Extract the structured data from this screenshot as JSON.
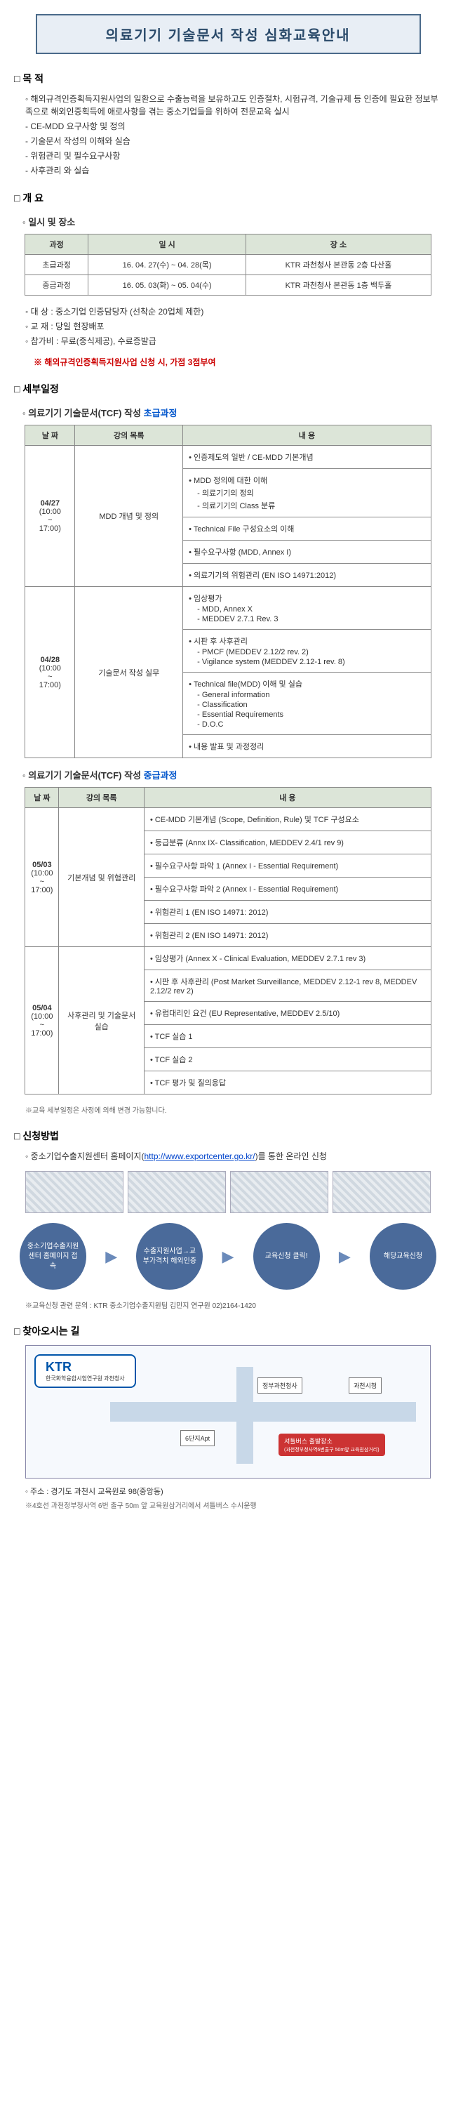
{
  "title": "의료기기 기술문서 작성 심화교육안내",
  "sections": {
    "purpose": {
      "head": "목 적",
      "items": [
        {
          "t": "diamond",
          "text": "해외규격인증획득지원사업의 일환으로 수출능력을 보유하고도 인증절차, 시험규격, 기술규제 등 인증에 필요한 정보부족으로 해외인증획득에 애로사항을 겪는 중소기업들을 위하여 전문교육 실시"
        },
        {
          "t": "dash",
          "text": "CE-MDD 요구사항 및 정의"
        },
        {
          "t": "dash",
          "text": "기술문서 작성의 이해와 실습"
        },
        {
          "t": "dash",
          "text": "위험관리 및 필수요구사항"
        },
        {
          "t": "dash",
          "text": "사후관리 와 실습"
        }
      ]
    },
    "overview": {
      "head": "개 요",
      "schedule_sub": "일시 및 장소",
      "table_headers": [
        "과정",
        "일    시",
        "장    소"
      ],
      "rows": [
        {
          "course": "초급과정",
          "date": "16. 04. 27(수) ~ 04. 28(목)",
          "place": "KTR 과천청사 본관동 2층 다산홀"
        },
        {
          "course": "중급과정",
          "date": "16. 05. 03(화) ~ 05. 04(수)",
          "place": "KTR 과천청사 본관동 1층 백두홀"
        }
      ],
      "extras": [
        {
          "t": "diamond",
          "text": "대    상 : 중소기업 인증담당자 (선착순 20업체 제한)"
        },
        {
          "t": "diamond",
          "text": "교    재 : 당일 현장배포"
        },
        {
          "t": "diamond",
          "text": "참가비 : 무료(중식제공), 수료증발급"
        }
      ],
      "note": "※ 해외규격인증획득지원사업 신청 시, 가점 3점부여"
    },
    "detail": {
      "head": "세부일정",
      "basic_sub": "의료기기 기술문서(TCF) 작성",
      "basic_label": "초급과정",
      "basic_headers": [
        "날 짜",
        "강의 목록",
        "내    용"
      ],
      "basic": [
        {
          "date": "04/27",
          "time": "(10:00 ~ 17:00)",
          "topic": "MDD 개념 및 정의",
          "rows": [
            [
              {
                "text": "인증제도의 일반 / CE-MDD 기본개념"
              }
            ],
            [
              {
                "text": "MDD 정의에 대한 이해"
              },
              {
                "sub": true,
                "text": "의료기기의 정의"
              },
              {
                "sub": true,
                "text": "의료기기의 Class 분류"
              }
            ],
            [
              {
                "text": "Technical File 구성요소의 이해"
              }
            ],
            [
              {
                "text": "필수요구사항 (MDD, Annex I)"
              }
            ],
            [
              {
                "text": "의료기기의 위험관리 (EN ISO 14971:2012)"
              }
            ]
          ]
        },
        {
          "date": "04/28",
          "time": "(10:00 ~ 17:00)",
          "topic": "기술문서 작성 실무",
          "rows": [
            [
              {
                "text": "임상평가"
              },
              {
                "sub": true,
                "text": "MDD, Annex X"
              },
              {
                "sub": true,
                "text": "MEDDEV 2.7.1 Rev. 3"
              }
            ],
            [
              {
                "text": "시판 후 사후관리"
              },
              {
                "sub": true,
                "text": "PMCF (MEDDEV 2.12/2 rev. 2)"
              },
              {
                "sub": true,
                "text": "Vigilance system (MEDDEV 2.12-1 rev. 8)"
              }
            ],
            [
              {
                "text": "Technical file(MDD) 이해 및 실습"
              },
              {
                "sub": true,
                "text": "General information"
              },
              {
                "sub": true,
                "text": "Classification"
              },
              {
                "sub": true,
                "text": "Essential Requirements"
              },
              {
                "sub": true,
                "text": "D.O.C"
              }
            ],
            [
              {
                "text": "내용 발표 및 과정정리"
              }
            ]
          ]
        }
      ],
      "adv_sub": "의료기기 기술문서(TCF) 작성",
      "adv_label": "중급과정",
      "adv_headers": [
        "날 짜",
        "강의 목록",
        "내    용"
      ],
      "adv": [
        {
          "date": "05/03",
          "time": "(10:00 ~ 17:00)",
          "topic": "기본개념 및 위험관리",
          "rows": [
            [
              {
                "text": "CE-MDD 기본개념 (Scope, Definition, Rule) 및 TCF 구성요소"
              }
            ],
            [
              {
                "text": "등급분류 (Annx IX- Classification, MEDDEV 2.4/1 rev 9)"
              }
            ],
            [
              {
                "text": "필수요구사항 파악 1 (Annex I - Essential Requirement)"
              }
            ],
            [
              {
                "text": "필수요구사항 파악 2 (Annex I - Essential Requirement)"
              }
            ],
            [
              {
                "text": "위험관리 1 (EN ISO 14971: 2012)"
              }
            ],
            [
              {
                "text": "위험관리 2 (EN ISO 14971: 2012)"
              }
            ]
          ]
        },
        {
          "date": "05/04",
          "time": "(10:00 ~ 17:00)",
          "topic": "사후관리 및 기술문서 실습",
          "rows": [
            [
              {
                "text": "임상평가 (Annex X - Clinical Evaluation, MEDDEV 2.7.1 rev 3)"
              }
            ],
            [
              {
                "text": "시판 후 사후관리 (Post Market Surveillance, MEDDEV 2.12-1 rev 8, MEDDEV 2.12/2 rev 2)"
              }
            ],
            [
              {
                "text": "유럽대리인 요건 (EU Representative, MEDDEV 2.5/10)"
              }
            ],
            [
              {
                "text": "TCF 실습 1"
              }
            ],
            [
              {
                "text": "TCF 실습 2"
              }
            ],
            [
              {
                "text": "TCF 평가 및 질의응답"
              }
            ]
          ]
        }
      ],
      "foot_note": "※교육 세부일정은 사정에 의해 변경 가능합니다."
    },
    "apply": {
      "head": "신청방법",
      "intro_pre": "중소기업수출지원센터 홈페이지(",
      "intro_url": "http://www.exportcenter.go.kr/",
      "intro_post": ")를 통한 온라인 신청",
      "steps": [
        "중소기업수출지원센터 홈페이지 접속",
        "수출지원사업→교부가격치 해외인증",
        "교육신청 클릭!",
        "해당교육신청"
      ],
      "contact": "※교육신청 관련 문의 : KTR 중소기업수출지원팀 김민지 연구원 02)2164-1420"
    },
    "location": {
      "head": "찾아오시는 길",
      "logo": "KTR",
      "logo_sub": "한국화학융합시험연구원 과천청사",
      "bldgs": {
        "gov": "정부과천청사",
        "city": "과천시청",
        "apt": "6단지Apt"
      },
      "station": "셔틀버스 출발장소",
      "station_sub": "(과천정부청사역6번출구 50m앞 교육원삼거리)",
      "addr": "주소 : 경기도 과천시 교육원로 98(중앙동)",
      "addr_note": "※4호선 과천정부청사역 6번 출구 50m 앞 교육원삼거리에서 셔틀버스 수시운행"
    }
  }
}
